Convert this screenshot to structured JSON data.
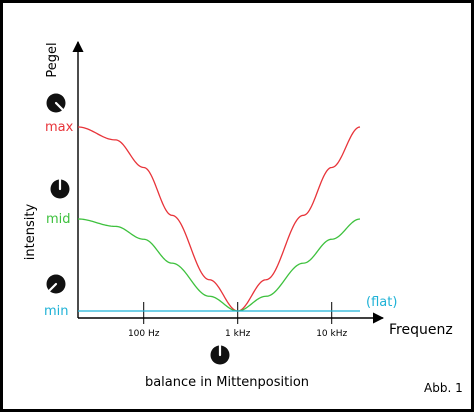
{
  "chart_data": {
    "type": "line",
    "x_label": "Frequenz",
    "y_label": "Pegel",
    "side_label": "intensity",
    "x_scale": "log",
    "x_ticks": [
      {
        "value": 100,
        "label": "100 Hz"
      },
      {
        "value": 1000,
        "label": "1 kHz"
      },
      {
        "value": 10000,
        "label": "10 kHz"
      }
    ],
    "level_labels": {
      "max": {
        "text": "max",
        "color": "#e8343a"
      },
      "mid": {
        "text": "mid",
        "color": "#3ec13e"
      },
      "min": {
        "text": "min",
        "color": "#1fb2d6"
      }
    },
    "series": [
      {
        "name": "max",
        "color": "#e8343a",
        "x": [
          20,
          50,
          100,
          200,
          500,
          1000,
          2000,
          5000,
          10000,
          20000
        ],
        "y": [
          1.0,
          0.93,
          0.78,
          0.52,
          0.17,
          0.0,
          0.17,
          0.52,
          0.78,
          1.0
        ]
      },
      {
        "name": "mid",
        "color": "#3ec13e",
        "x": [
          20,
          50,
          100,
          200,
          500,
          1000,
          2000,
          5000,
          10000,
          20000
        ],
        "y": [
          0.5,
          0.46,
          0.39,
          0.26,
          0.08,
          0.0,
          0.08,
          0.26,
          0.39,
          0.5
        ]
      },
      {
        "name": "(flat)",
        "color": "#1fb2d6",
        "x": [
          20,
          20000
        ],
        "y": [
          0.0,
          0.0
        ]
      }
    ],
    "flat_label": "(flat)",
    "annotation": "balance in Mittenposition",
    "figure_label": "Abb. 1",
    "knobs": [
      {
        "name": "max-knob",
        "level": "max"
      },
      {
        "name": "mid-knob",
        "level": "mid"
      },
      {
        "name": "min-knob",
        "level": "min"
      },
      {
        "name": "balance-knob",
        "level": "center"
      }
    ]
  }
}
